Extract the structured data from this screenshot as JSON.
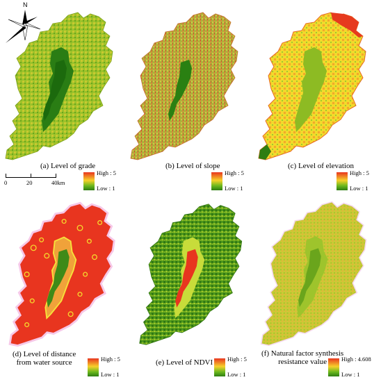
{
  "panels": [
    {
      "id": "a",
      "caption": "(a)  Level of grade",
      "legend_high": "High : 5",
      "legend_low": "Low : 1"
    },
    {
      "id": "b",
      "caption": "(b)  Level of slope",
      "legend_high": "High : 5",
      "legend_low": "Low : 1"
    },
    {
      "id": "c",
      "caption": "(c)  Level of elevation",
      "legend_high": "High : 5",
      "legend_low": "Low : 1"
    },
    {
      "id": "d",
      "caption_line1": "(d) Level of distance",
      "caption_line2": "from water source",
      "legend_high": "High : 5",
      "legend_low": "Low : 1"
    },
    {
      "id": "e",
      "caption": "(e)  Level of NDVI",
      "legend_high": "High : 5",
      "legend_low": "Low : 1"
    },
    {
      "id": "f",
      "caption_line1": "(f)  Natural factor synthesis",
      "caption_line2": "resistance value",
      "legend_high": "High : 4.608",
      "legend_low": "Low : 1"
    }
  ],
  "north_label": "N",
  "scale": {
    "labels": [
      "0",
      "20",
      "40km"
    ]
  },
  "colors": {
    "high": "#e8351f",
    "mid": "#f6d12a",
    "low": "#6bb81e",
    "lowest": "#2e7d12",
    "pink_halo": "#f6c8e8"
  },
  "icons": [
    "north-arrow-icon"
  ]
}
